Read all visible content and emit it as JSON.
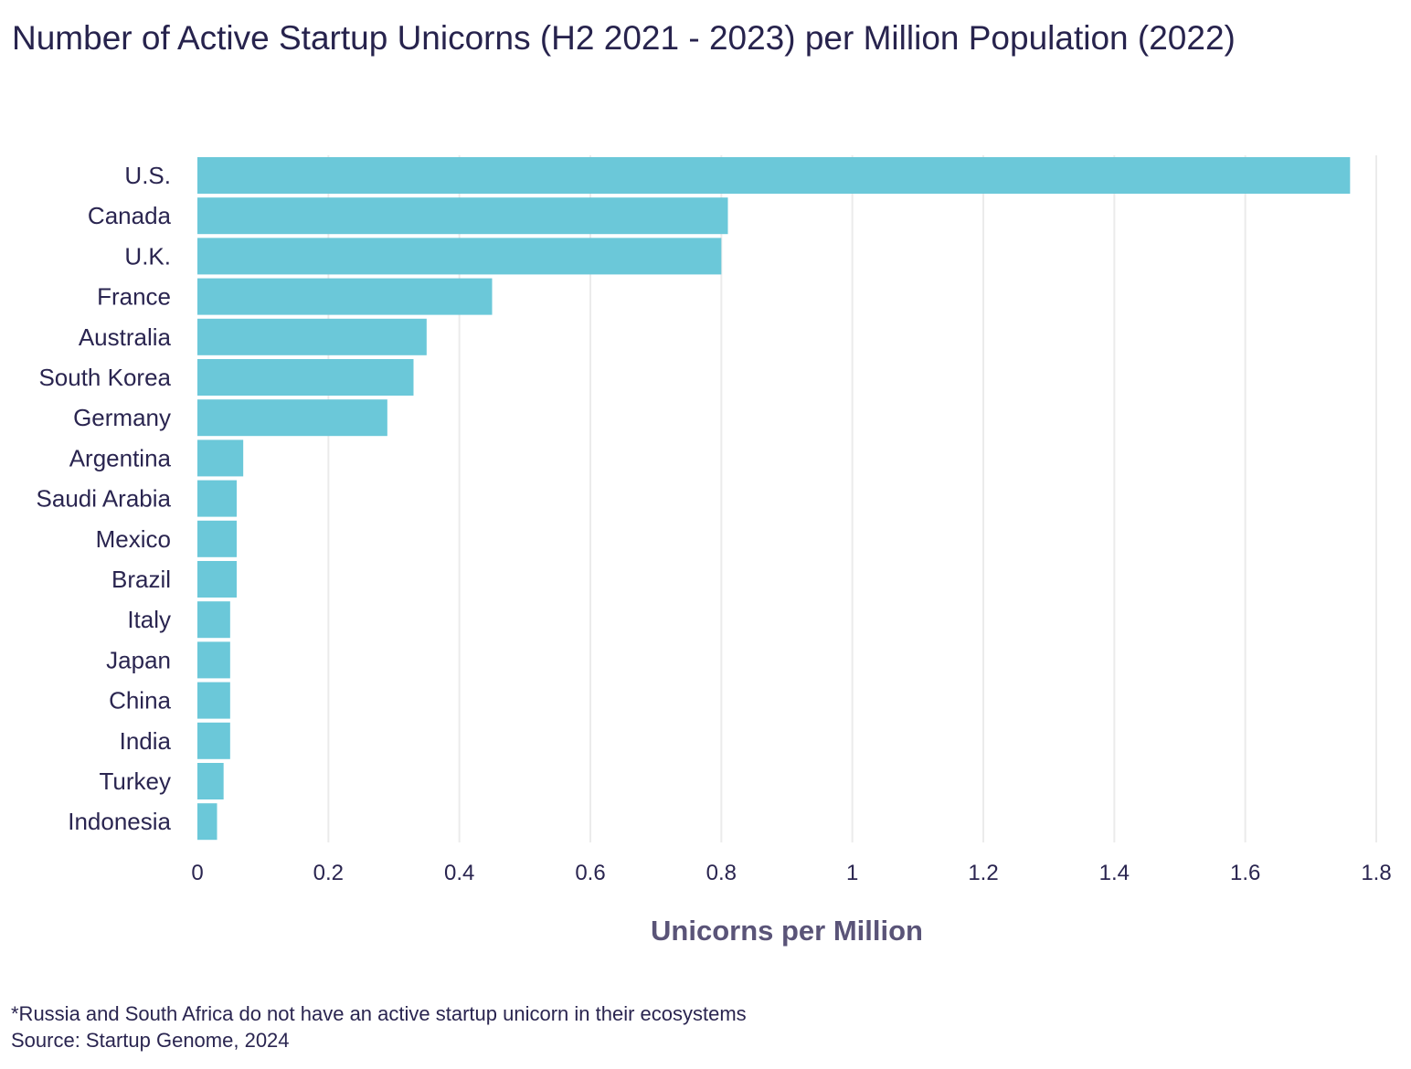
{
  "chart_data": {
    "type": "bar",
    "orientation": "horizontal",
    "title": "Number of Active Startup Unicorns (H2 2021 - 2023) per Million Population (2022)",
    "xlabel": "Unicorns per Million",
    "ylabel": "",
    "xlim": [
      0,
      1.8
    ],
    "xticks": [
      0,
      0.2,
      0.4,
      0.6,
      0.8,
      1,
      1.2,
      1.4,
      1.6,
      1.8
    ],
    "xtick_labels": [
      "0",
      "0.2",
      "0.4",
      "0.6",
      "0.8",
      "1",
      "1.2",
      "1.4",
      "1.6",
      "1.8"
    ],
    "grid": "vertical",
    "bar_color": "#6bc8d9",
    "categories": [
      "U.S.",
      "Canada",
      "U.K.",
      "France",
      "Australia",
      "South Korea",
      "Germany",
      "Argentina",
      "Saudi Arabia",
      "Mexico",
      "Brazil",
      "Italy",
      "Japan",
      "China",
      "India",
      "Turkey",
      "Indonesia"
    ],
    "values": [
      1.76,
      0.81,
      0.8,
      0.45,
      0.35,
      0.33,
      0.29,
      0.07,
      0.06,
      0.06,
      0.06,
      0.05,
      0.05,
      0.05,
      0.05,
      0.04,
      0.03
    ]
  },
  "footnotes": {
    "note": "*Russia and South Africa do not have an active startup unicorn in their ecosystems",
    "source": "Source: Startup Genome, 2024"
  }
}
